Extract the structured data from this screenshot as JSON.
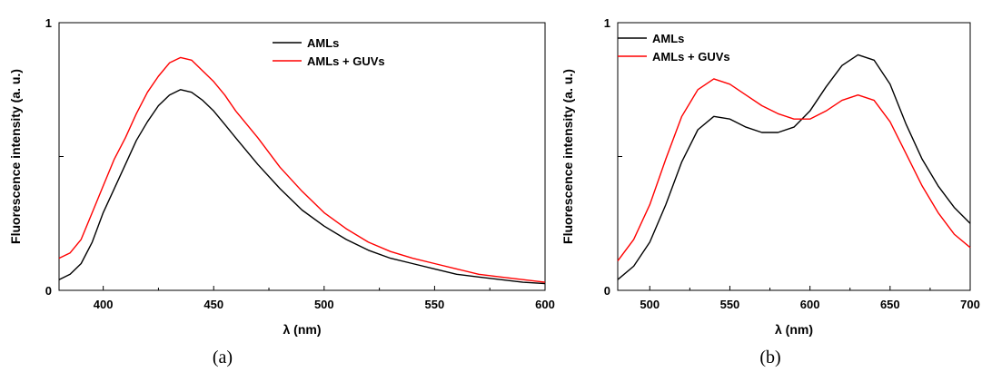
{
  "colors": {
    "AMLs": "#000000",
    "AMLs + GUVs": "#ff0000"
  },
  "chart_data": [
    {
      "type": "line",
      "caption": "(a)",
      "xlabel": "λ (nm)",
      "ylabel": "Fluorescence intensity (a. u.)",
      "xlim": [
        380,
        600
      ],
      "ylim": [
        0,
        1
      ],
      "xticks": [
        400,
        450,
        500,
        550,
        600
      ],
      "yticks": [
        0,
        1
      ],
      "legend_position": "top-right",
      "series": [
        {
          "name": "AMLs",
          "x": [
            380,
            385,
            390,
            395,
            400,
            405,
            410,
            415,
            420,
            425,
            430,
            435,
            440,
            445,
            450,
            455,
            460,
            470,
            480,
            490,
            500,
            510,
            520,
            530,
            540,
            550,
            560,
            570,
            580,
            590,
            600
          ],
          "y": [
            0.04,
            0.06,
            0.1,
            0.18,
            0.29,
            0.38,
            0.47,
            0.56,
            0.63,
            0.69,
            0.73,
            0.75,
            0.74,
            0.71,
            0.67,
            0.62,
            0.57,
            0.47,
            0.38,
            0.3,
            0.24,
            0.19,
            0.15,
            0.12,
            0.1,
            0.08,
            0.06,
            0.05,
            0.04,
            0.03,
            0.025
          ]
        },
        {
          "name": "AMLs + GUVs",
          "x": [
            380,
            385,
            390,
            395,
            400,
            405,
            410,
            415,
            420,
            425,
            430,
            435,
            440,
            445,
            450,
            455,
            460,
            470,
            480,
            490,
            500,
            510,
            520,
            530,
            540,
            550,
            560,
            570,
            580,
            590,
            600
          ],
          "y": [
            0.12,
            0.14,
            0.19,
            0.29,
            0.39,
            0.49,
            0.57,
            0.66,
            0.74,
            0.8,
            0.85,
            0.87,
            0.86,
            0.82,
            0.78,
            0.73,
            0.67,
            0.57,
            0.46,
            0.37,
            0.29,
            0.23,
            0.18,
            0.145,
            0.12,
            0.1,
            0.08,
            0.06,
            0.05,
            0.04,
            0.03
          ]
        }
      ]
    },
    {
      "type": "line",
      "caption": "(b)",
      "xlabel": "λ (nm)",
      "ylabel": "Fluorescence intensity (a. u.)",
      "xlim": [
        480,
        700
      ],
      "ylim": [
        0,
        1
      ],
      "xticks": [
        500,
        550,
        600,
        650,
        700
      ],
      "yticks": [
        0,
        1
      ],
      "legend_position": "top-left",
      "series": [
        {
          "name": "AMLs",
          "x": [
            480,
            490,
            500,
            510,
            520,
            530,
            540,
            550,
            560,
            570,
            580,
            590,
            600,
            610,
            620,
            630,
            640,
            650,
            660,
            670,
            680,
            690,
            700
          ],
          "y": [
            0.04,
            0.09,
            0.18,
            0.32,
            0.48,
            0.6,
            0.65,
            0.64,
            0.61,
            0.59,
            0.59,
            0.61,
            0.67,
            0.76,
            0.84,
            0.88,
            0.86,
            0.77,
            0.62,
            0.49,
            0.39,
            0.31,
            0.25
          ]
        },
        {
          "name": "AMLs + GUVs",
          "x": [
            480,
            490,
            500,
            510,
            520,
            530,
            540,
            550,
            560,
            570,
            580,
            590,
            600,
            610,
            620,
            630,
            640,
            650,
            660,
            670,
            680,
            690,
            700
          ],
          "y": [
            0.11,
            0.19,
            0.32,
            0.49,
            0.65,
            0.75,
            0.79,
            0.77,
            0.73,
            0.69,
            0.66,
            0.64,
            0.64,
            0.67,
            0.71,
            0.73,
            0.71,
            0.63,
            0.51,
            0.39,
            0.29,
            0.21,
            0.16
          ]
        }
      ]
    }
  ]
}
